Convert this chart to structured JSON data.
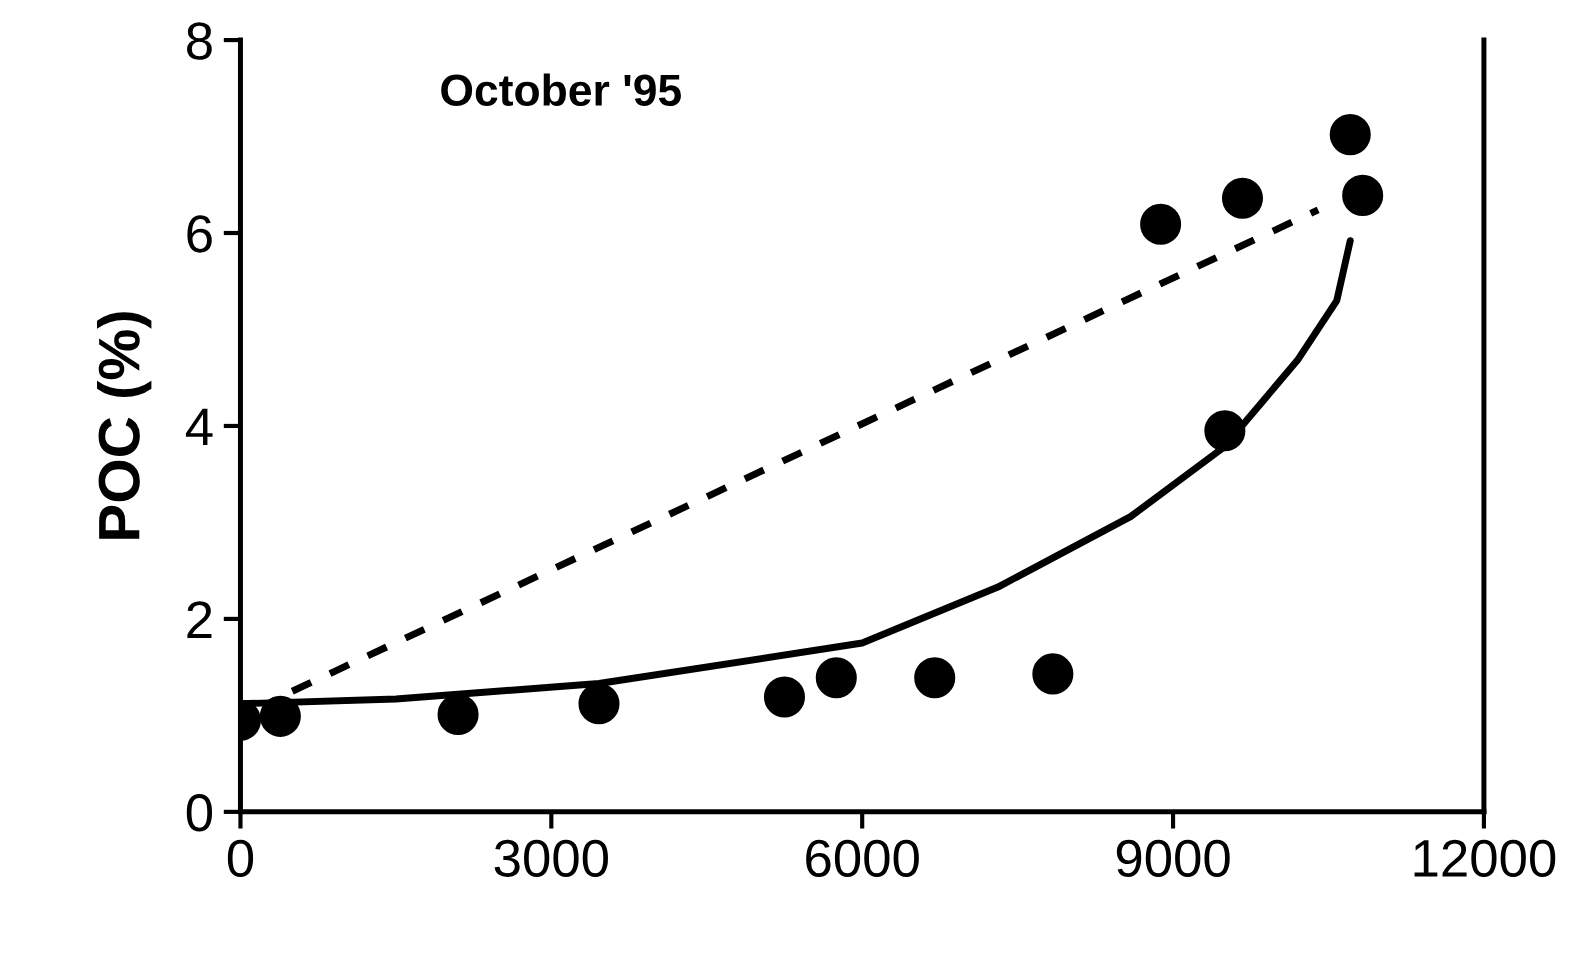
{
  "chart_data": {
    "type": "scatter",
    "ylabel": "POC (%)",
    "annotations": [
      "October '95"
    ],
    "xlim": [
      0,
      12000
    ],
    "xticks": [
      0,
      3000,
      6000,
      9000,
      12000
    ],
    "ylim": [
      0,
      8
    ],
    "yticks": [
      0,
      2,
      4,
      6,
      8
    ],
    "grid": false,
    "legend": false,
    "series": [
      {
        "color": "#000000",
        "marker": "circle",
        "x": [
          0,
          385,
          2100,
          3460,
          5250,
          5750,
          6700,
          7840,
          8880,
          9500,
          9670,
          10710,
          10830
        ],
        "values": [
          0.95,
          0.99,
          1.01,
          1.12,
          1.19,
          1.39,
          1.39,
          1.43,
          6.09,
          3.95,
          6.36,
          7.02,
          6.39
        ]
      },
      {
        "type": "line",
        "color": "#000000",
        "line_style": "dashed",
        "x": [
          500,
          10400
        ],
        "values": [
          1.25,
          6.24
        ]
      },
      {
        "type": "line",
        "color": "#000000",
        "line_style": "solid",
        "x": [
          0,
          1500,
          3460,
          6000,
          7310,
          8590,
          9490,
          10200,
          10580,
          10710
        ],
        "values": [
          1.12,
          1.17,
          1.33,
          1.75,
          2.33,
          3.06,
          3.78,
          4.68,
          5.3,
          5.92
        ]
      }
    ]
  }
}
